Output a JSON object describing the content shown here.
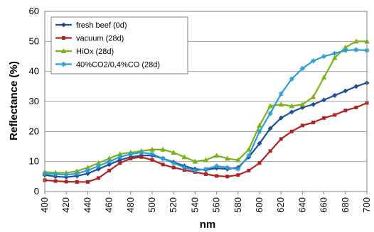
{
  "chart_data": {
    "type": "line",
    "title": "",
    "xlabel": "nm",
    "ylabel": "Reflectance (%)",
    "xlim": [
      400,
      700
    ],
    "ylim": [
      0,
      60
    ],
    "xticks": [
      400,
      420,
      440,
      460,
      480,
      500,
      520,
      540,
      560,
      580,
      600,
      620,
      640,
      660,
      680,
      700
    ],
    "yticks": [
      0,
      10,
      20,
      30,
      40,
      50,
      60
    ],
    "grid": "horizontal",
    "legend_position": "top-left",
    "x": [
      400,
      410,
      420,
      430,
      440,
      450,
      460,
      470,
      480,
      490,
      500,
      510,
      520,
      530,
      540,
      550,
      560,
      570,
      580,
      590,
      600,
      610,
      620,
      630,
      640,
      650,
      660,
      670,
      680,
      690,
      700
    ],
    "series": [
      {
        "name": "fresh beef (0d)",
        "color": "#1f4e9c",
        "marker": "diamond",
        "values": [
          5.5,
          5.0,
          4.8,
          5.2,
          6.0,
          7.5,
          9.0,
          10.5,
          11.5,
          12.0,
          12.0,
          11.0,
          9.8,
          8.5,
          7.5,
          7.2,
          7.8,
          7.5,
          8.0,
          11.5,
          16.0,
          21.0,
          24.5,
          26.5,
          28.0,
          29.0,
          30.5,
          32.0,
          33.5,
          35.0,
          36.2
        ]
      },
      {
        "name": "vacuum (28d)",
        "color": "#b22222",
        "marker": "square",
        "values": [
          3.8,
          3.5,
          3.3,
          3.2,
          3.2,
          4.5,
          7.0,
          9.5,
          11.0,
          11.5,
          10.5,
          9.0,
          8.0,
          7.2,
          6.5,
          5.8,
          5.2,
          5.0,
          5.5,
          7.0,
          9.5,
          13.5,
          17.5,
          20.0,
          22.0,
          23.0,
          24.5,
          25.5,
          27.0,
          28.0,
          29.5
        ]
      },
      {
        "name": "HiOx (28d)",
        "color": "#7ab317",
        "marker": "triangle",
        "values": [
          6.5,
          6.3,
          6.2,
          6.8,
          8.0,
          9.5,
          11.0,
          12.5,
          13.0,
          13.5,
          14.0,
          14.0,
          13.0,
          11.5,
          10.0,
          10.5,
          12.0,
          11.0,
          10.5,
          14.0,
          22.0,
          28.5,
          29.0,
          28.5,
          29.0,
          31.5,
          38.0,
          44.5,
          48.0,
          50.0,
          50.0
        ]
      },
      {
        "name": "40%CO2/0,4%CO (28d)",
        "color": "#2a9fd6",
        "marker": "asterisk",
        "values": [
          6.0,
          5.8,
          5.6,
          6.0,
          7.0,
          8.5,
          10.0,
          11.5,
          12.5,
          13.0,
          12.5,
          11.0,
          9.5,
          8.0,
          7.0,
          7.5,
          8.5,
          8.0,
          7.5,
          12.0,
          20.0,
          26.0,
          32.5,
          37.5,
          41.0,
          43.5,
          45.0,
          46.0,
          47.0,
          47.2,
          47.0
        ]
      }
    ]
  }
}
